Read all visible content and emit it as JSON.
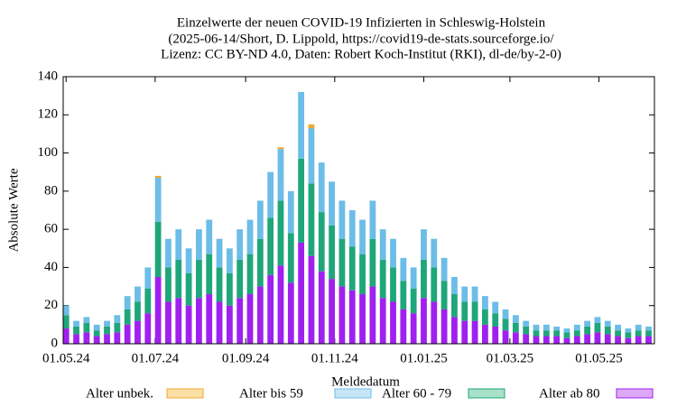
{
  "chart_data": {
    "type": "stacked-bar",
    "title": [
      "Einzelwerte der neuen COVID-19 Infizierten in Schleswig-Holstein",
      "(2025-06-14/Short, D. Lippold, https://covid19-de-stats.sourceforge.io/",
      "Lizenz: CC BY-ND 4.0, Daten: Robert Koch-Institut (RKI), dl-de/by-2-0)"
    ],
    "x_label": "Meldedatum",
    "y_label": "Absolute Werte",
    "x": [
      "2024-05-01",
      "2024-05-08",
      "2024-05-15",
      "2024-05-22",
      "2024-05-29",
      "2024-06-05",
      "2024-06-12",
      "2024-06-19",
      "2024-06-26",
      "2024-07-03",
      "2024-07-10",
      "2024-07-17",
      "2024-07-24",
      "2024-07-31",
      "2024-08-07",
      "2024-08-14",
      "2024-08-21",
      "2024-08-28",
      "2024-09-04",
      "2024-09-11",
      "2024-09-18",
      "2024-09-25",
      "2024-10-02",
      "2024-10-09",
      "2024-10-16",
      "2024-10-23",
      "2024-10-30",
      "2024-11-06",
      "2024-11-13",
      "2024-11-20",
      "2024-11-27",
      "2024-12-04",
      "2024-12-11",
      "2024-12-18",
      "2024-12-25",
      "2025-01-01",
      "2025-01-08",
      "2025-01-15",
      "2025-01-22",
      "2025-01-29",
      "2025-02-05",
      "2025-02-12",
      "2025-02-19",
      "2025-02-26",
      "2025-03-05",
      "2025-03-12",
      "2025-03-19",
      "2025-03-26",
      "2025-04-02",
      "2025-04-09",
      "2025-04-16",
      "2025-04-23",
      "2025-04-30",
      "2025-05-07",
      "2025-05-14",
      "2025-05-21",
      "2025-05-28",
      "2025-06-04"
    ],
    "series": [
      {
        "name": "Alter unbek.",
        "color": "#f0a830",
        "legend_color": "#fbdfa6",
        "values": [
          0,
          0,
          0,
          0,
          0,
          0,
          0,
          0,
          0,
          1,
          0,
          0,
          0,
          0,
          0,
          0,
          0,
          0,
          0,
          0,
          0,
          1,
          0,
          0,
          2,
          0,
          0,
          0,
          0,
          0,
          0,
          0,
          0,
          0,
          0,
          0,
          0,
          0,
          0,
          0,
          0,
          0,
          0,
          0,
          0,
          0,
          0,
          0,
          0,
          0,
          0,
          0,
          0,
          0,
          0,
          0,
          0,
          0
        ]
      },
      {
        "name": "Alter bis 59",
        "color": "#6cbde8",
        "legend_color": "#c6e6f7",
        "values": [
          5,
          3,
          3,
          3,
          3,
          4,
          7,
          8,
          11,
          23,
          15,
          16,
          13,
          16,
          18,
          15,
          13,
          16,
          18,
          20,
          24,
          27,
          22,
          35,
          29,
          26,
          23,
          20,
          19,
          18,
          20,
          16,
          15,
          12,
          11,
          16,
          15,
          12,
          9,
          8,
          8,
          7,
          6,
          5,
          4,
          3,
          3,
          3,
          2,
          2,
          3,
          3,
          3,
          3,
          3,
          2,
          3,
          2
        ]
      },
      {
        "name": "Alter 60 - 79",
        "color": "#1fa67a",
        "legend_color": "#a8e0c8",
        "values": [
          7,
          4,
          5,
          3,
          4,
          5,
          8,
          10,
          13,
          29,
          18,
          20,
          17,
          20,
          21,
          18,
          17,
          20,
          21,
          25,
          30,
          34,
          26,
          44,
          38,
          31,
          28,
          25,
          23,
          21,
          25,
          20,
          18,
          15,
          13,
          20,
          18,
          15,
          12,
          10,
          10,
          8,
          7,
          6,
          5,
          4,
          3,
          3,
          3,
          3,
          3,
          4,
          5,
          4,
          3,
          3,
          3,
          3
        ]
      },
      {
        "name": "Alter ab 80",
        "color": "#a020f0",
        "legend_color": "#dca8f5",
        "values": [
          8,
          5,
          6,
          4,
          5,
          6,
          10,
          12,
          16,
          35,
          22,
          24,
          20,
          24,
          26,
          22,
          20,
          24,
          26,
          30,
          36,
          41,
          32,
          53,
          46,
          38,
          34,
          30,
          28,
          26,
          30,
          24,
          22,
          18,
          16,
          24,
          22,
          18,
          14,
          12,
          12,
          10,
          9,
          7,
          6,
          5,
          4,
          4,
          4,
          3,
          4,
          5,
          6,
          5,
          4,
          3,
          4,
          4
        ]
      }
    ],
    "xlim": [
      "2024-04-29",
      "2025-06-08"
    ],
    "xticks": [
      {
        "value": "2024-05-01",
        "label": "01.05.24"
      },
      {
        "value": "2024-07-01",
        "label": "01.07.24"
      },
      {
        "value": "2024-09-01",
        "label": "01.09.24"
      },
      {
        "value": "2024-11-01",
        "label": "01.11.24"
      },
      {
        "value": "2025-01-01",
        "label": "01.01.25"
      },
      {
        "value": "2025-03-01",
        "label": "01.03.25"
      },
      {
        "value": "2025-05-01",
        "label": "01.05.25"
      }
    ],
    "ylim": [
      0,
      140
    ],
    "yticks": [
      0,
      20,
      40,
      60,
      80,
      100,
      120,
      140
    ],
    "grid": false
  }
}
